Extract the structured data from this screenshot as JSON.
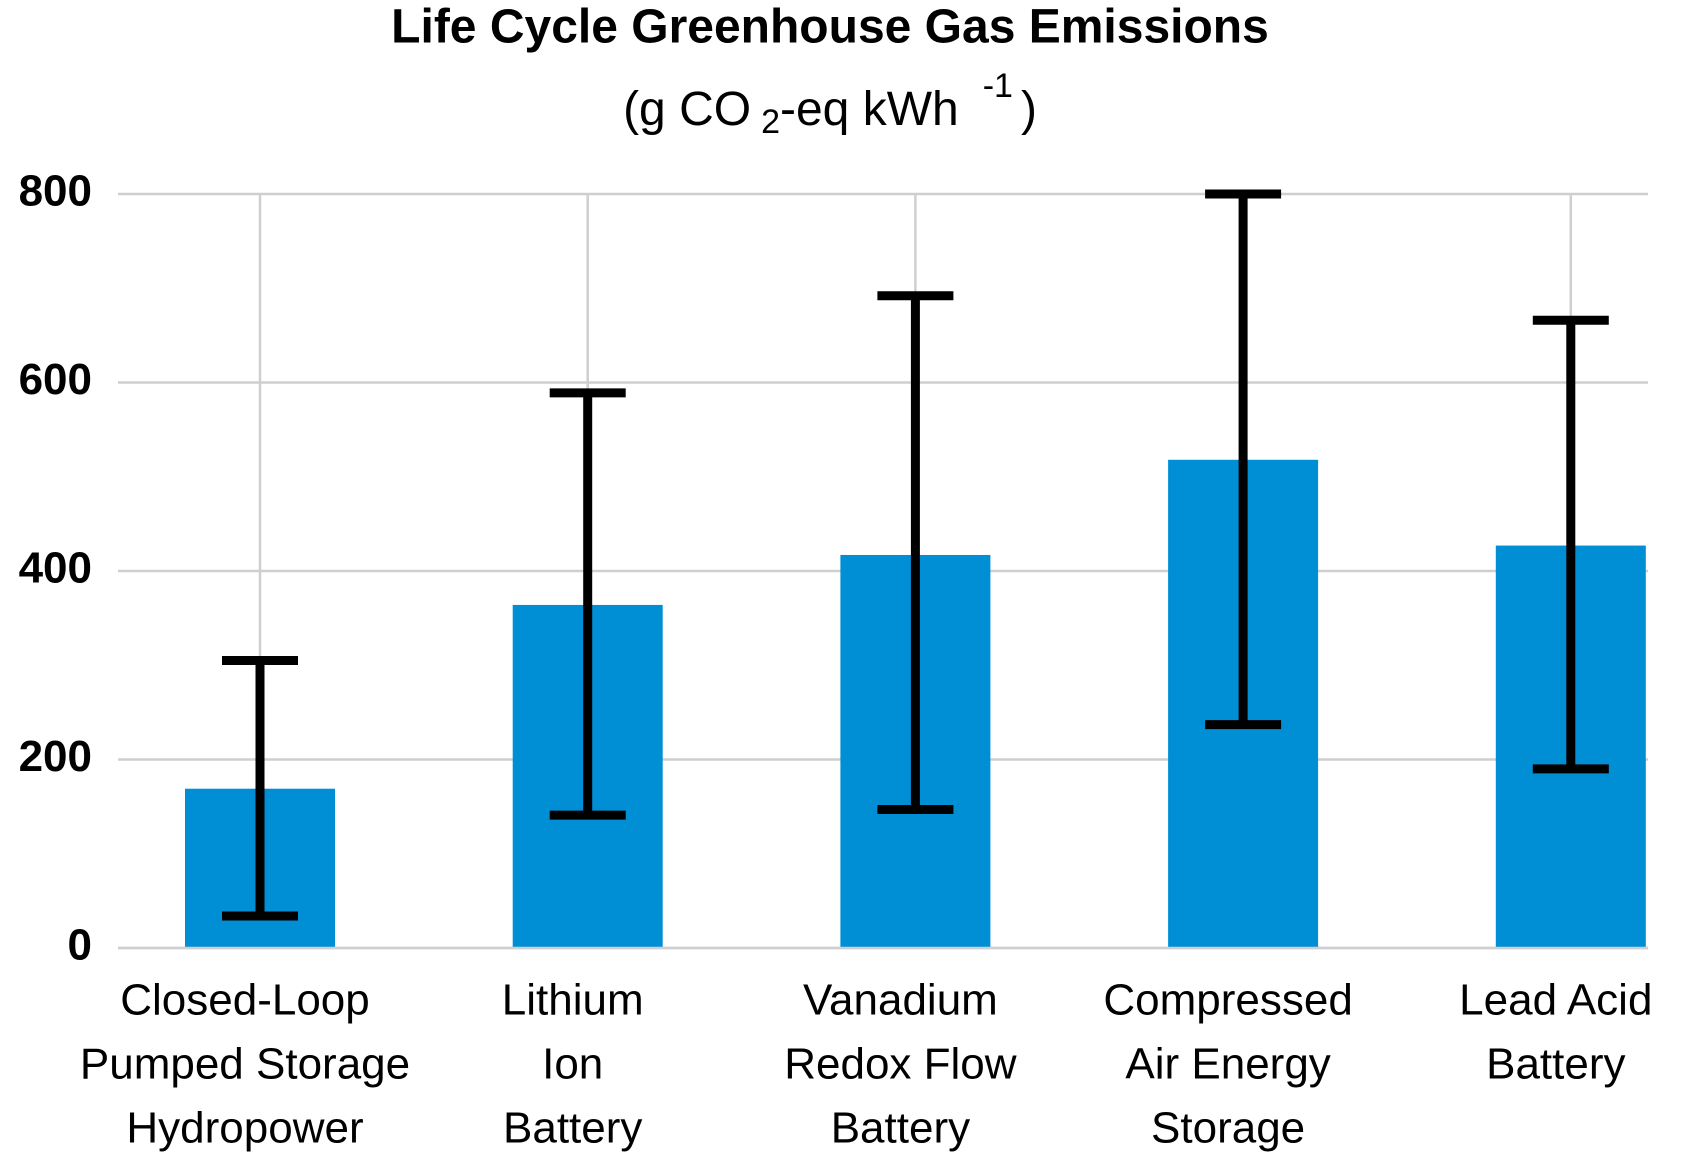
{
  "chart_data": {
    "type": "bar",
    "title": "Life Cycle Greenhouse Gas Emissions",
    "subtitle": [
      "(g CO",
      "2",
      "-eq kWh",
      "-1",
      ")"
    ],
    "categories": [
      [
        "Closed-Loop",
        "Pumped Storage",
        "Hydropower"
      ],
      [
        "Lithium",
        "Ion",
        "Battery"
      ],
      [
        "Vanadium",
        "Redox Flow",
        "Battery"
      ],
      [
        "Compressed",
        "Air Energy",
        "Storage"
      ],
      [
        "Lead Acid",
        "Battery"
      ]
    ],
    "values": [
      169,
      364,
      417,
      518,
      427
    ],
    "error_low": [
      34,
      141,
      147,
      237,
      190
    ],
    "error_high": [
      305,
      589,
      692,
      800,
      666
    ],
    "color": "#008fd5",
    "ylim": [
      0,
      800
    ],
    "yticks": [
      0,
      200,
      400,
      600,
      800
    ],
    "grid": true
  }
}
